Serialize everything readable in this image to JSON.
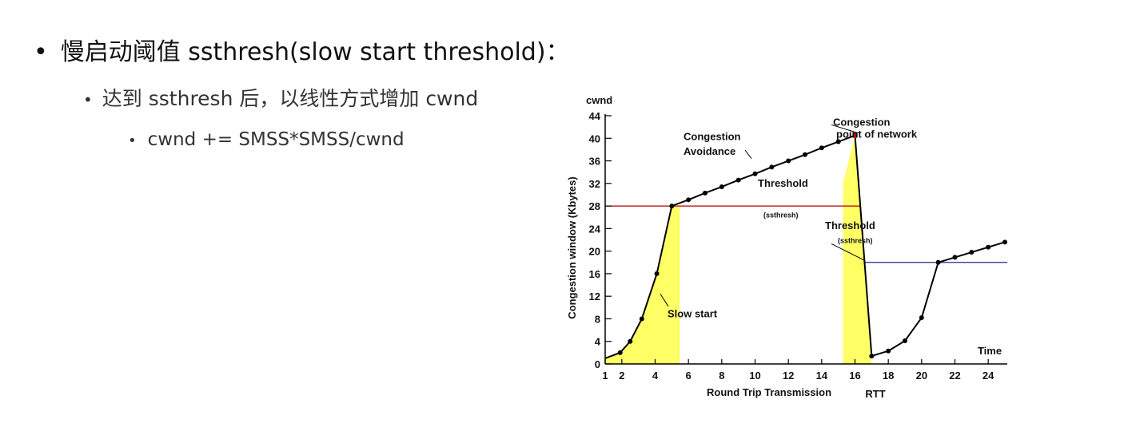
{
  "bullets": {
    "level1": "慢启动阈值 ssthresh(slow start threshold)：",
    "level2": "达到 ssthresh 后，以线性方式增加 cwnd",
    "level3": "cwnd += SMSS*SMSS/cwnd",
    "bullet_glyph": "•"
  },
  "chart_data": {
    "type": "line",
    "title": "",
    "ylabel": "Congestion window (Kbytes)",
    "ylabel_top": "cwnd",
    "xlabel": "Round Trip Transmission",
    "xlabel_unit": "RTT",
    "x_end_label": "Time",
    "xlim": [
      1,
      25
    ],
    "ylim": [
      0,
      44
    ],
    "x_ticks": [
      1,
      2,
      4,
      6,
      8,
      10,
      12,
      14,
      16,
      18,
      20,
      22,
      24
    ],
    "y_ticks": [
      0,
      4,
      8,
      12,
      16,
      20,
      24,
      28,
      32,
      36,
      40,
      44
    ],
    "grid": false,
    "series": [
      {
        "values_x": [
          1,
          1.9,
          2.5,
          3.2,
          4.1,
          5.0,
          6.0,
          7.0,
          8.0,
          9.0,
          10.0,
          11.0,
          12.0,
          13.0,
          14.0,
          15.0,
          16.0,
          17.0,
          18.0,
          19.0,
          20.0,
          21.0,
          22.0,
          23.0,
          24.0,
          25.0
        ],
        "values_y": [
          1,
          2,
          4,
          8,
          16,
          28,
          29.1,
          30.3,
          31.4,
          32.6,
          33.7,
          34.9,
          36.0,
          37.1,
          38.3,
          39.4,
          40.5,
          1.4,
          2.3,
          4.1,
          8.2,
          18,
          18.9,
          19.8,
          20.7,
          21.6
        ]
      }
    ],
    "thresholds": [
      {
        "label": "Threshold",
        "sublabel": "(ssthresh)",
        "y": 28,
        "color": "#b00000"
      },
      {
        "label": "Threshold",
        "sublabel": "(ssthresh)",
        "y": 18,
        "color": "#1a2a8a"
      }
    ],
    "annotations": [
      {
        "text": "Slow start"
      },
      {
        "text": "Congestion",
        "text2": "Avoidance"
      },
      {
        "text": "Congestion",
        "text2": "point of network"
      }
    ],
    "colors": {
      "line": "#000000",
      "fill": "#ffff66",
      "peak": "#e00000"
    }
  }
}
